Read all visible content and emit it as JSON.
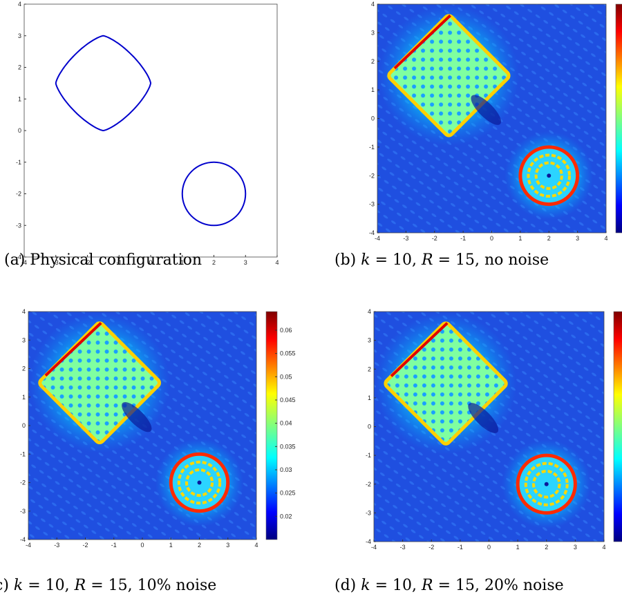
{
  "figure": {
    "panels": [
      {
        "id": "a",
        "caption": {
          "prefix": "(a) ",
          "text": "Physical configuration"
        },
        "type": "curves",
        "curve_color": "#0000cc",
        "x_ticks": [
          "-4",
          "-3",
          "-2",
          "-1",
          "0",
          "1",
          "2",
          "3",
          "4"
        ],
        "y_ticks": [
          "4",
          "3",
          "2",
          "1",
          "0",
          "-1",
          "-2",
          "-3",
          "-4"
        ]
      },
      {
        "id": "b",
        "caption": {
          "prefix": "(b) ",
          "k_sym": "k",
          "k_val": " = 10, ",
          "r_sym": "R",
          "r_val": " = 15, no noise"
        },
        "type": "heatmap",
        "x_ticks": [
          "-4",
          "-3",
          "-2",
          "-1",
          "0",
          "1",
          "2",
          "3",
          "4"
        ],
        "y_ticks": [
          "4",
          "3",
          "2",
          "1",
          "0",
          "-1",
          "-2",
          "-3",
          "-4"
        ]
      },
      {
        "id": "c",
        "caption": {
          "prefix": "c) ",
          "k_sym": "k",
          "k_val": " = 10, ",
          "r_sym": "R",
          "r_val": " = 15, 10% noise"
        },
        "type": "heatmap",
        "x_ticks": [
          "-4",
          "-3",
          "-2",
          "-1",
          "0",
          "1",
          "2",
          "3",
          "4"
        ],
        "y_ticks": [
          "4",
          "3",
          "2",
          "1",
          "0",
          "-1",
          "-2",
          "-3",
          "-4"
        ],
        "colorbar_ticks": [
          "0.06",
          "0.055",
          "0.05",
          "0.045",
          "0.04",
          "0.035",
          "0.03",
          "0.025",
          "0.02"
        ]
      },
      {
        "id": "d",
        "caption": {
          "prefix": "(d) ",
          "k_sym": "k",
          "k_val": " = 10, ",
          "r_sym": "R",
          "r_val": " = 15, 20% noise"
        },
        "type": "heatmap",
        "x_ticks": [
          "-4",
          "-3",
          "-2",
          "-1",
          "0",
          "1",
          "2",
          "3",
          "4"
        ],
        "y_ticks": [
          "4",
          "3",
          "2",
          "1",
          "0",
          "-1",
          "-2",
          "-3",
          "-4"
        ]
      }
    ],
    "colormap": "jet",
    "background_color": "#1f4fe0",
    "chart_data": {
      "type": "heatmap",
      "x_range": [
        -4,
        4
      ],
      "y_range": [
        -4,
        4
      ],
      "scatterers": [
        {
          "shape": "rounded-diamond",
          "center": [
            -1.5,
            1.5
          ],
          "x_extent": [
            -3,
            0
          ],
          "y_extent": [
            0,
            3
          ]
        },
        {
          "shape": "circle",
          "center": [
            2,
            -2
          ],
          "radius": 1
        }
      ],
      "colorbar_range": [
        0.015,
        0.064
      ]
    }
  }
}
